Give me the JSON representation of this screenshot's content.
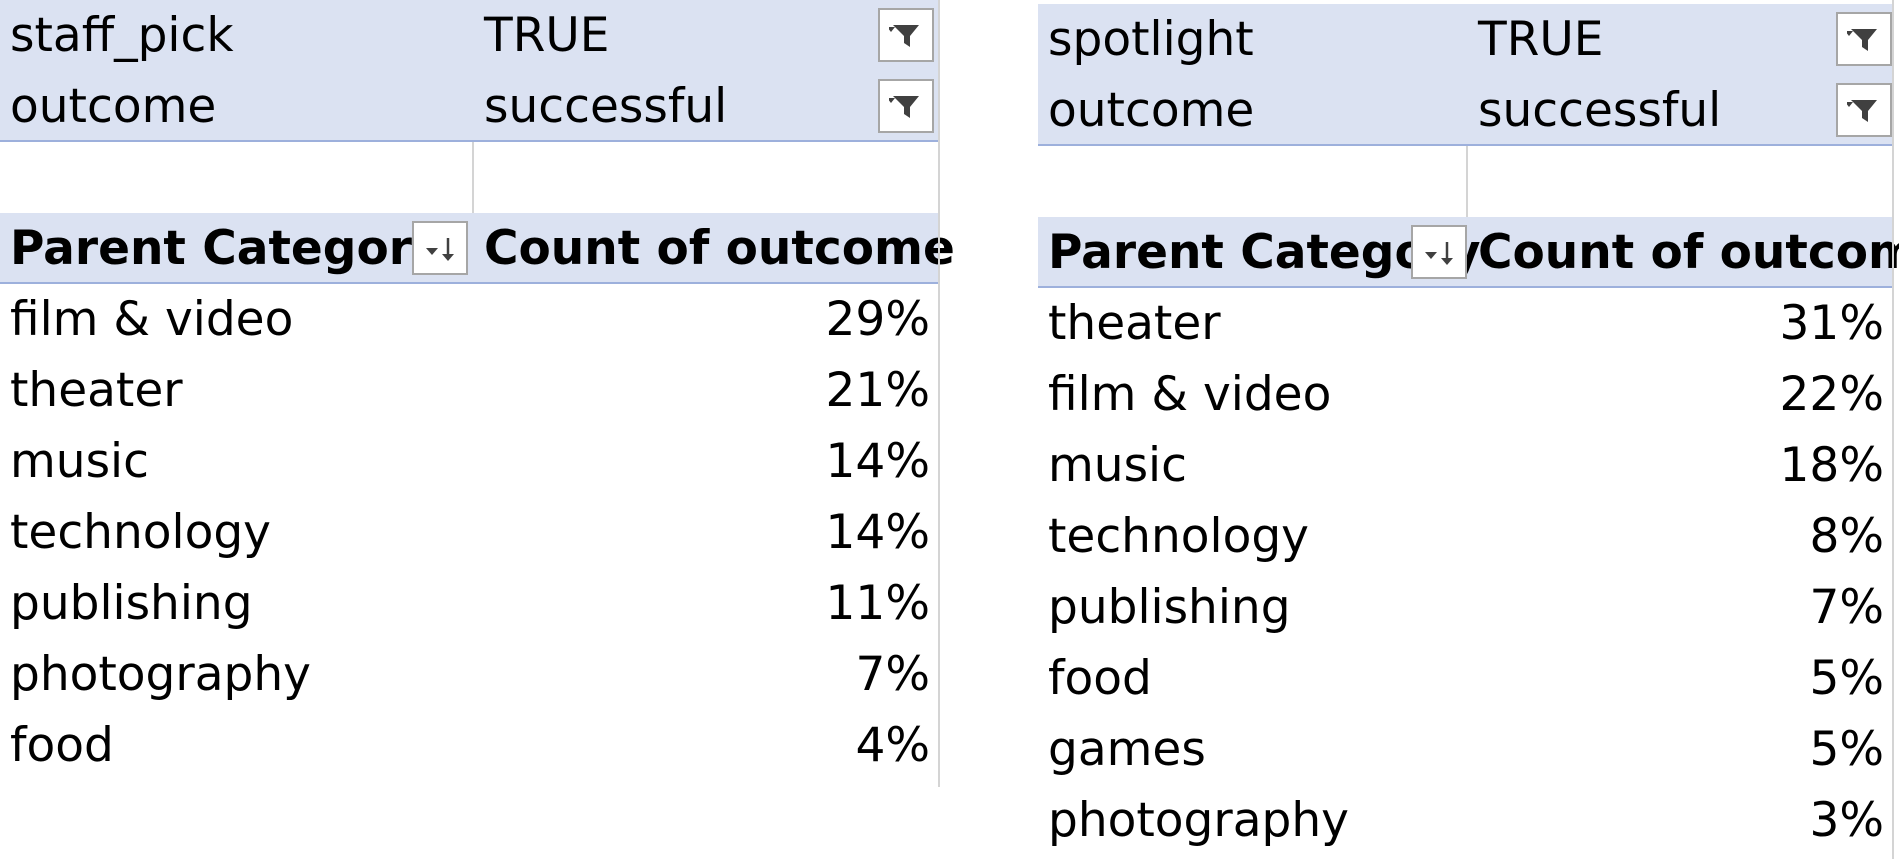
{
  "pivots": [
    {
      "filters": [
        {
          "field": "staff_pick",
          "value": "TRUE"
        },
        {
          "field": "outcome",
          "value": "successful"
        }
      ],
      "header": {
        "row_label": "Parent Category",
        "value_label": "Count of outcome"
      },
      "rows": [
        {
          "category": "film & video",
          "value": "29%"
        },
        {
          "category": "theater",
          "value": "21%"
        },
        {
          "category": "music",
          "value": "14%"
        },
        {
          "category": "technology",
          "value": "14%"
        },
        {
          "category": "publishing",
          "value": "11%"
        },
        {
          "category": "photography",
          "value": "7%"
        },
        {
          "category": "food",
          "value": "4%"
        }
      ]
    },
    {
      "filters": [
        {
          "field": "spotlight",
          "value": "TRUE"
        },
        {
          "field": "outcome",
          "value": "successful"
        }
      ],
      "header": {
        "row_label": "Parent Category",
        "value_label": "Count of outcome"
      },
      "rows": [
        {
          "category": "theater",
          "value": "31%"
        },
        {
          "category": "film & video",
          "value": "22%"
        },
        {
          "category": "music",
          "value": "18%"
        },
        {
          "category": "technology",
          "value": "8%"
        },
        {
          "category": "publishing",
          "value": "7%"
        },
        {
          "category": "food",
          "value": "5%"
        },
        {
          "category": "games",
          "value": "5%"
        },
        {
          "category": "photography",
          "value": "3%"
        }
      ]
    }
  ],
  "icons": {
    "filter": "filter-funnel-icon",
    "sort": "sort-descending-icon"
  },
  "colors": {
    "header_fill": "#dbe2f2",
    "header_border": "#9db0dc",
    "gridline": "#d4d4d4"
  }
}
